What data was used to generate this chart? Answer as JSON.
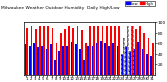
{
  "title": "Milwaukee Weather Outdoor Humidity",
  "subtitle": "Daily High/Low",
  "high_color": "#ff0000",
  "low_color": "#0000ff",
  "background_color": "#ffffff",
  "border_color": "#000000",
  "ylim": [
    0,
    100
  ],
  "yticks": [
    20,
    40,
    60,
    80,
    100
  ],
  "highs": [
    90,
    93,
    88,
    93,
    93,
    93,
    90,
    60,
    79,
    88,
    93,
    90,
    93,
    85,
    60,
    93,
    93,
    93,
    93,
    93,
    93,
    93,
    93,
    70,
    93,
    93,
    88,
    93,
    80,
    70,
    60
  ],
  "lows": [
    58,
    55,
    60,
    52,
    55,
    50,
    58,
    28,
    45,
    55,
    55,
    62,
    58,
    50,
    28,
    55,
    55,
    60,
    65,
    60,
    55,
    60,
    55,
    40,
    55,
    45,
    50,
    62,
    50,
    40,
    35
  ],
  "labels": [
    "1",
    "2",
    "3",
    "4",
    "5",
    "6",
    "7",
    "8",
    "9",
    "10",
    "11",
    "12",
    "13",
    "14",
    "15",
    "16",
    "17",
    "18",
    "19",
    "20",
    "21",
    "22",
    "23",
    "24",
    "25",
    "26",
    "27",
    "28",
    "29",
    "30",
    "31"
  ],
  "dashed_indices": [
    23,
    24,
    25
  ],
  "legend_high": "High",
  "legend_low": "Low"
}
